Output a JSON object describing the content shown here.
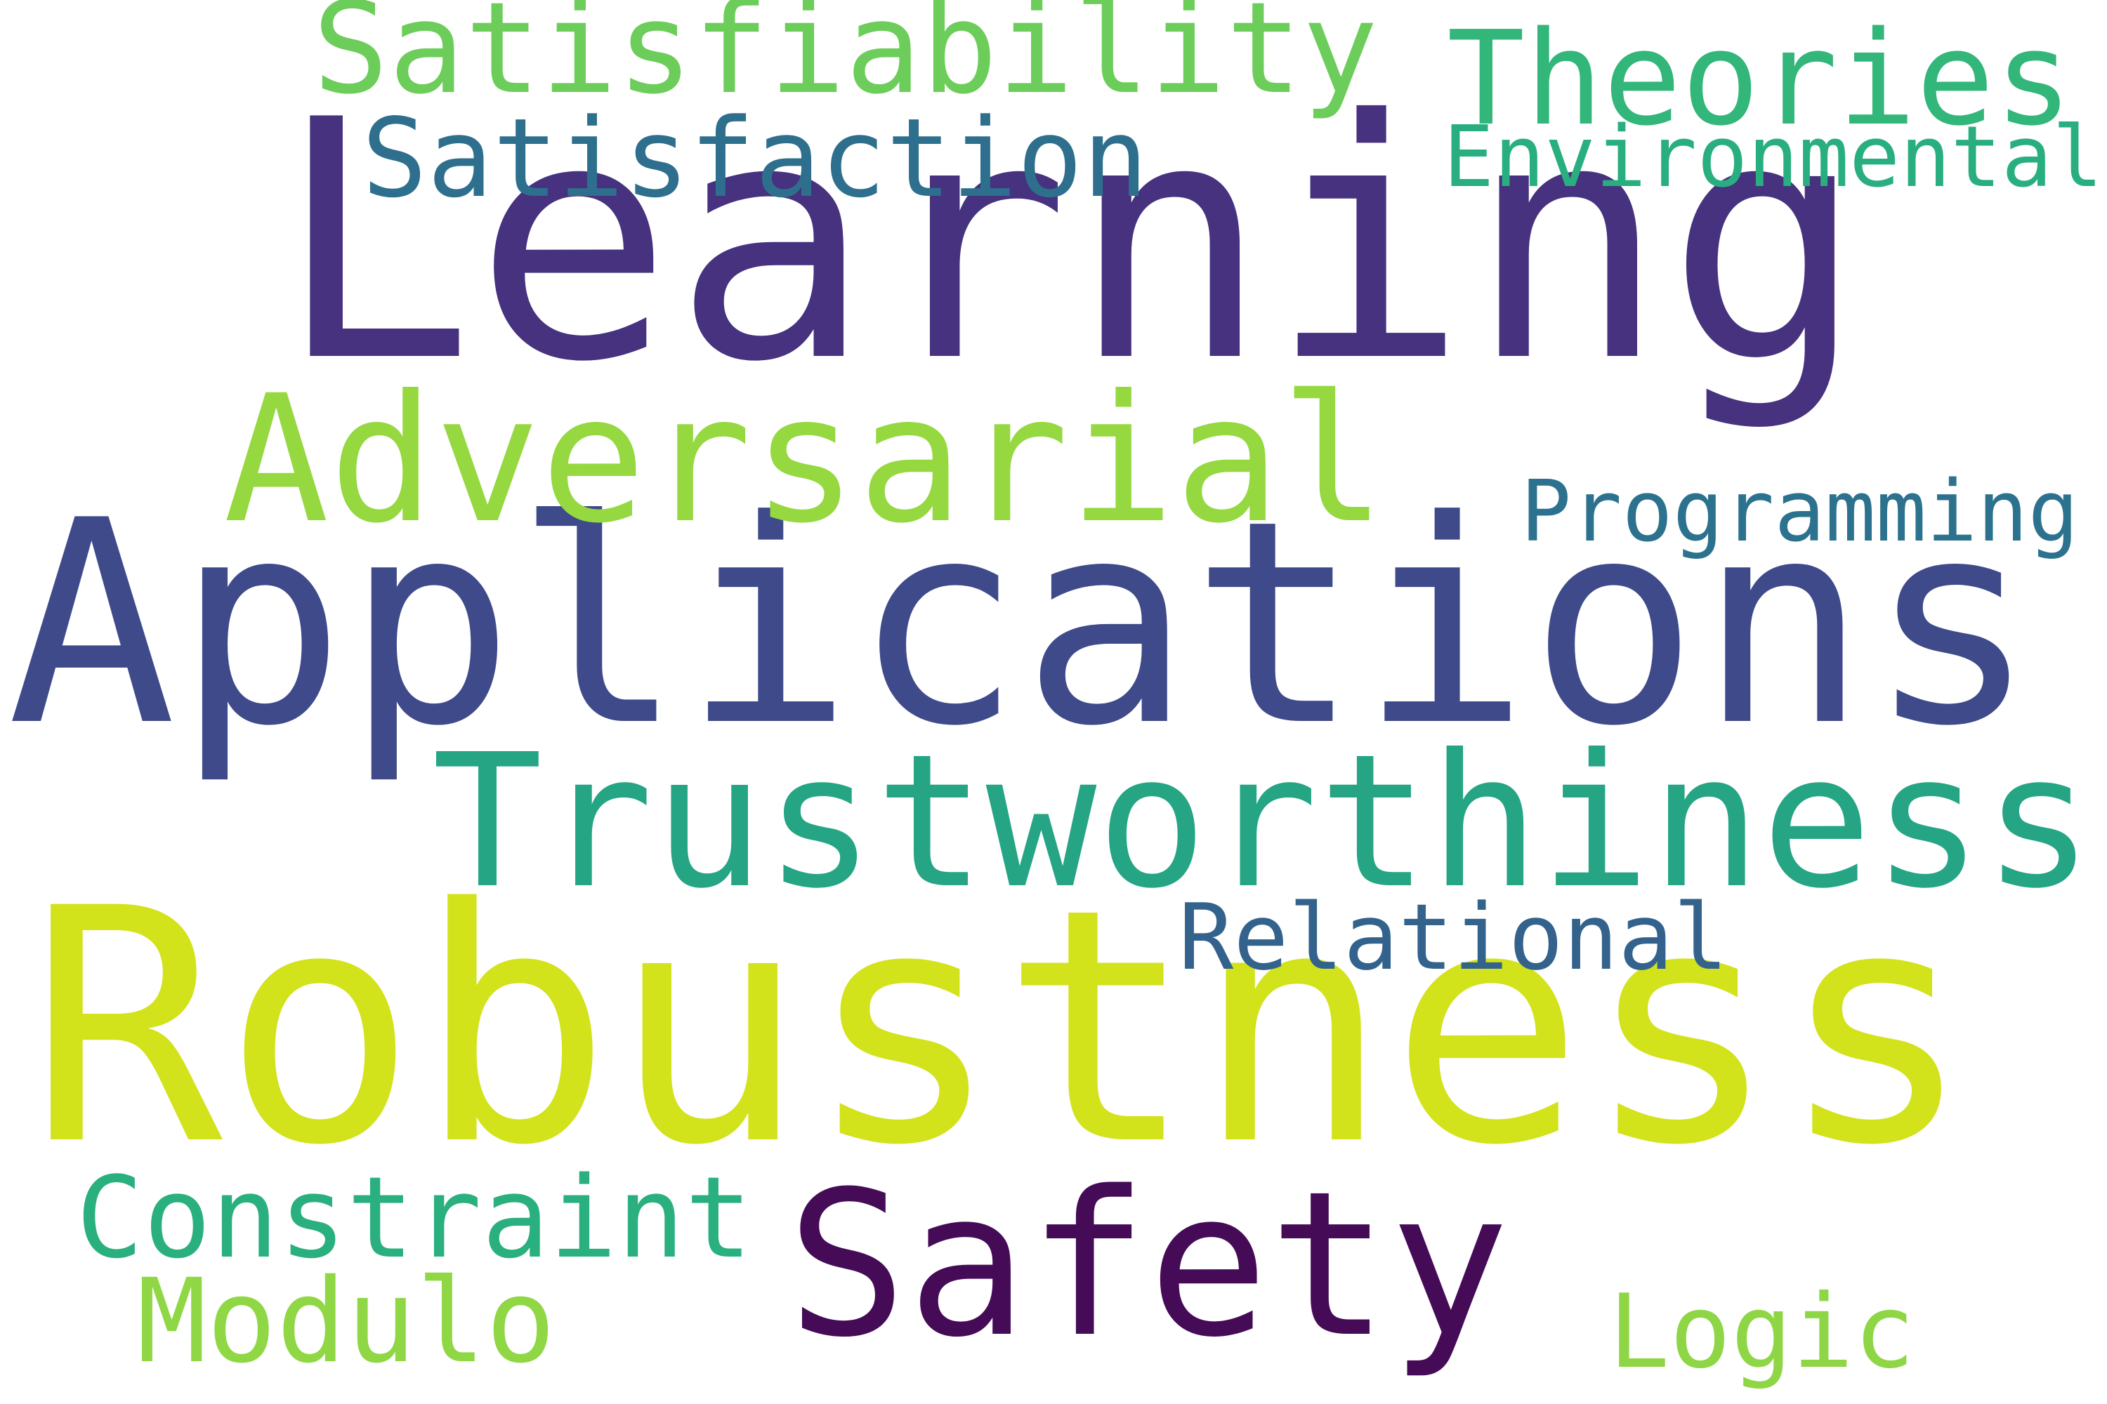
{
  "word_cloud": {
    "words": [
      {
        "id": "learning",
        "text": "Learning",
        "color": "#46327e"
      },
      {
        "id": "applications",
        "text": "Applications",
        "color": "#3f4a8a"
      },
      {
        "id": "robustness",
        "text": "Robustness",
        "color": "#d2e21b"
      },
      {
        "id": "trustworthiness",
        "text": "Trustworthiness",
        "color": "#25a584"
      },
      {
        "id": "adversarial",
        "text": "Adversarial",
        "color": "#95d840"
      },
      {
        "id": "satisfiability",
        "text": "Satisfiability",
        "color": "#6ccd5a"
      },
      {
        "id": "theories",
        "text": "Theories",
        "color": "#32b67a"
      },
      {
        "id": "satisfaction",
        "text": "Satisfaction",
        "color": "#2e6f8e"
      },
      {
        "id": "environmental",
        "text": "Environmental",
        "color": "#29af7f"
      },
      {
        "id": "programming",
        "text": "Programming",
        "color": "#2c728e"
      },
      {
        "id": "relational",
        "text": "Relational",
        "color": "#33638d"
      },
      {
        "id": "constraint",
        "text": "Constraint",
        "color": "#2ab07f"
      },
      {
        "id": "safety",
        "text": "Safety",
        "color": "#450b57"
      },
      {
        "id": "modulo",
        "text": "Modulo",
        "color": "#8fd744"
      },
      {
        "id": "logic",
        "text": "Logic",
        "color": "#8ed645"
      }
    ]
  }
}
